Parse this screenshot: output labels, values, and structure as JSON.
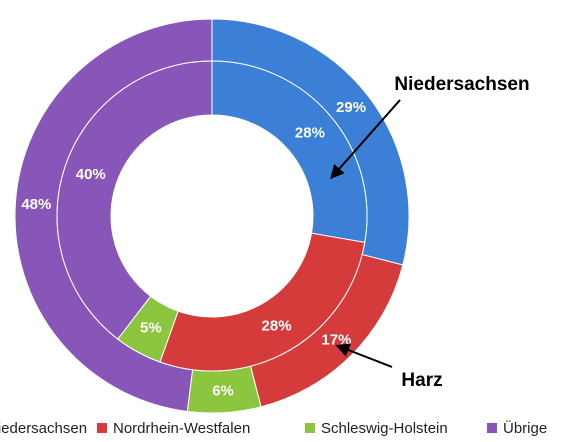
{
  "chart_data": {
    "type": "doughnut",
    "categories": [
      "Niedersachsen",
      "Nordrhein-Westfalen",
      "Schleswig-Holstein",
      "Übrige"
    ],
    "colors": [
      "#3b7fd6",
      "#d63b3b",
      "#8cc63f",
      "#8856b8"
    ],
    "series": [
      {
        "values": [
          29,
          17,
          6,
          48
        ],
        "value_labels": [
          "29%",
          "17%",
          "6%",
          "48%"
        ]
      },
      {
        "values": [
          28,
          28,
          5,
          40
        ],
        "value_labels": [
          "28%",
          "28%",
          "5%",
          "40%"
        ]
      }
    ],
    "annotations": [
      {
        "text": "Niedersachsen"
      },
      {
        "text": "Harz"
      }
    ],
    "legend": "bottom"
  }
}
